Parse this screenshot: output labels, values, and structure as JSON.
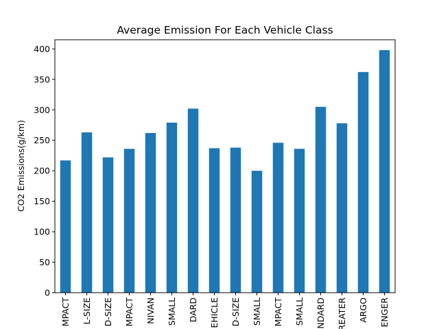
{
  "chart_data": {
    "type": "bar",
    "title": "Average Emission For Each Vehicle Class",
    "xlabel": "",
    "ylabel": "CO2 Emissions(g/km)",
    "ylim": [
      0,
      415
    ],
    "yticks": [
      0,
      50,
      100,
      150,
      200,
      250,
      300,
      350,
      400
    ],
    "ytick_labels": [
      "0",
      "50",
      "100",
      "150",
      "200",
      "250",
      "300",
      "350",
      "400"
    ],
    "categories": [
      "MPACT",
      "L-SIZE",
      "D-SIZE",
      "MPACT",
      "NIVAN",
      "SMALL",
      "DARD",
      "EHICLE",
      "D-SIZE",
      "SMALL",
      "MPACT",
      "SMALL",
      "NDARD",
      "REATER",
      "ARGO",
      "ENGER"
    ],
    "values": [
      217,
      263,
      222,
      236,
      262,
      279,
      302,
      237,
      238,
      200,
      246,
      236,
      305,
      278,
      362,
      398
    ],
    "bar_color": "#1f77b4",
    "grid": false
  }
}
